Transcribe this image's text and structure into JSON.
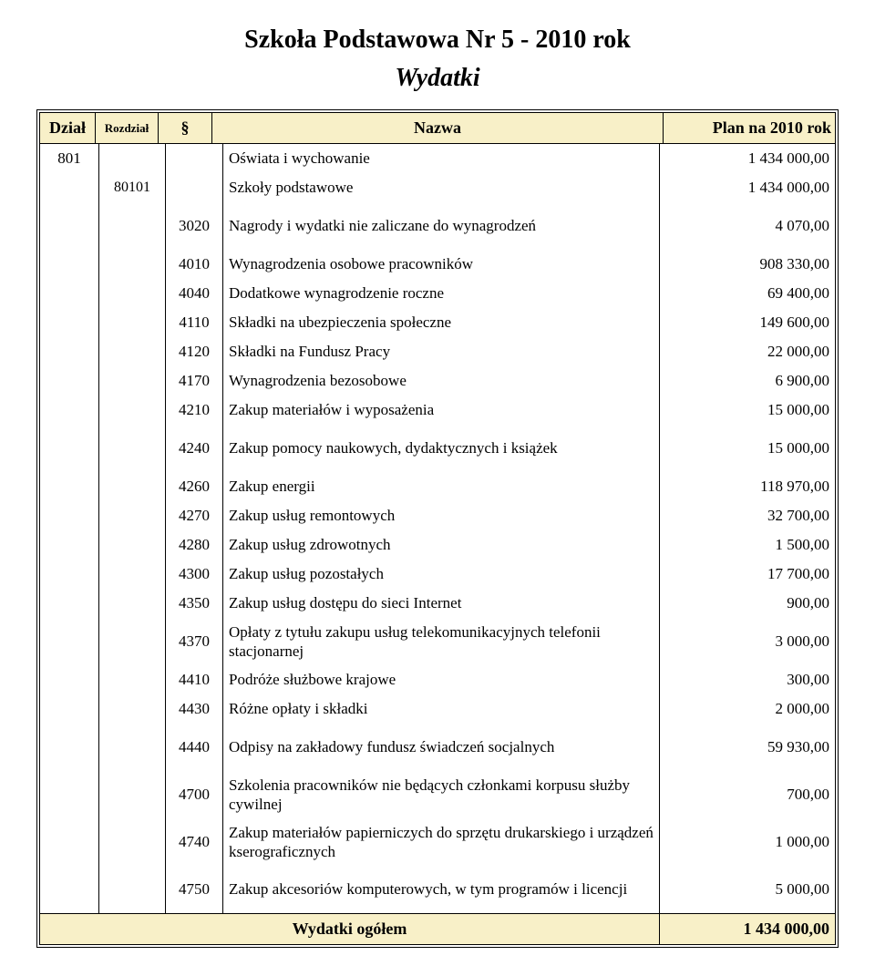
{
  "title": "Szkoła Podstawowa Nr 5 - 2010 rok",
  "subtitle": "Wydatki",
  "colors": {
    "header_bg": "#f8f0c8",
    "border": "#000000",
    "page_bg": "#ffffff",
    "text": "#000000"
  },
  "columns": {
    "dzial": "Dział",
    "rozdzial": "Rozdział",
    "paragraf": "§",
    "nazwa": "Nazwa",
    "plan": "Plan na 2010 rok"
  },
  "rows": [
    {
      "dzial": "801",
      "rozd": "",
      "par": "",
      "nazwa": "Oświata i wychowanie",
      "plan": "1 434 000,00",
      "tall": false
    },
    {
      "dzial": "",
      "rozd": "80101",
      "par": "",
      "nazwa": "Szkoły podstawowe",
      "plan": "1 434 000,00",
      "tall": false
    },
    {
      "dzial": "",
      "rozd": "",
      "par": "3020",
      "nazwa": "Nagrody i wydatki nie zaliczane do wynagrodzeń",
      "plan": "4 070,00",
      "tall": true
    },
    {
      "dzial": "",
      "rozd": "",
      "par": "4010",
      "nazwa": "Wynagrodzenia osobowe pracowników",
      "plan": "908 330,00",
      "tall": false
    },
    {
      "dzial": "",
      "rozd": "",
      "par": "4040",
      "nazwa": "Dodatkowe wynagrodzenie roczne",
      "plan": "69 400,00",
      "tall": false
    },
    {
      "dzial": "",
      "rozd": "",
      "par": "4110",
      "nazwa": "Składki na ubezpieczenia społeczne",
      "plan": "149 600,00",
      "tall": false
    },
    {
      "dzial": "",
      "rozd": "",
      "par": "4120",
      "nazwa": "Składki na Fundusz Pracy",
      "plan": "22 000,00",
      "tall": false
    },
    {
      "dzial": "",
      "rozd": "",
      "par": "4170",
      "nazwa": "Wynagrodzenia bezosobowe",
      "plan": "6 900,00",
      "tall": false
    },
    {
      "dzial": "",
      "rozd": "",
      "par": "4210",
      "nazwa": "Zakup materiałów i wyposażenia",
      "plan": "15 000,00",
      "tall": false
    },
    {
      "dzial": "",
      "rozd": "",
      "par": "4240",
      "nazwa": "Zakup pomocy naukowych, dydaktycznych i książek",
      "plan": "15 000,00",
      "tall": true
    },
    {
      "dzial": "",
      "rozd": "",
      "par": "4260",
      "nazwa": "Zakup energii",
      "plan": "118 970,00",
      "tall": false
    },
    {
      "dzial": "",
      "rozd": "",
      "par": "4270",
      "nazwa": "Zakup usług remontowych",
      "plan": "32 700,00",
      "tall": false
    },
    {
      "dzial": "",
      "rozd": "",
      "par": "4280",
      "nazwa": "Zakup usług zdrowotnych",
      "plan": "1 500,00",
      "tall": false
    },
    {
      "dzial": "",
      "rozd": "",
      "par": "4300",
      "nazwa": "Zakup usług pozostałych",
      "plan": "17 700,00",
      "tall": false
    },
    {
      "dzial": "",
      "rozd": "",
      "par": "4350",
      "nazwa": "Zakup usług dostępu do sieci Internet",
      "plan": "900,00",
      "tall": false
    },
    {
      "dzial": "",
      "rozd": "",
      "par": "4370",
      "nazwa": "Opłaty z tytułu zakupu usług telekomunikacyjnych telefonii stacjonarnej",
      "plan": "3 000,00",
      "tall": true
    },
    {
      "dzial": "",
      "rozd": "",
      "par": "4410",
      "nazwa": "Podróże służbowe krajowe",
      "plan": "300,00",
      "tall": false
    },
    {
      "dzial": "",
      "rozd": "",
      "par": "4430",
      "nazwa": "Różne opłaty i składki",
      "plan": "2 000,00",
      "tall": false
    },
    {
      "dzial": "",
      "rozd": "",
      "par": "4440",
      "nazwa": "Odpisy na zakładowy fundusz świadczeń socjalnych",
      "plan": "59 930,00",
      "tall": true
    },
    {
      "dzial": "",
      "rozd": "",
      "par": "4700",
      "nazwa": "Szkolenia pracowników nie będących członkami korpusu służby cywilnej",
      "plan": "700,00",
      "tall": true
    },
    {
      "dzial": "",
      "rozd": "",
      "par": "4740",
      "nazwa": "Zakup materiałów papierniczych do sprzętu drukarskiego i urządzeń kserograficznych",
      "plan": "1 000,00",
      "tall": true
    },
    {
      "dzial": "",
      "rozd": "",
      "par": "4750",
      "nazwa": "Zakup akcesoriów komputerowych, w tym programów i licencji",
      "plan": "5 000,00",
      "tall": true
    }
  ],
  "footer": {
    "label": "Wydatki ogółem",
    "value": "1 434 000,00"
  }
}
